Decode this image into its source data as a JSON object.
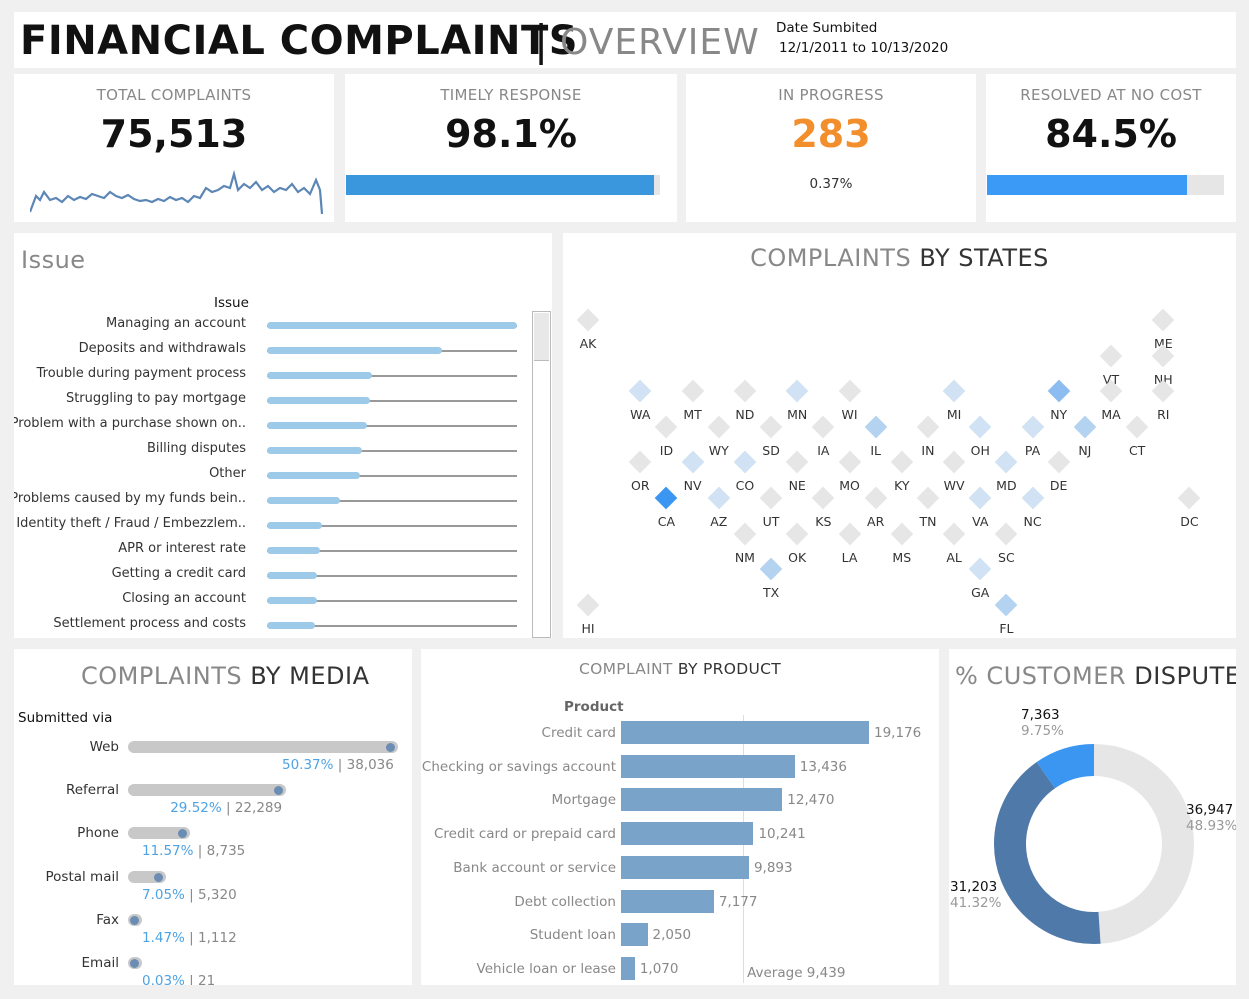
{
  "header": {
    "title_main": "FINANCIAL COMPLAINTS",
    "title_sep": "|",
    "title_sub": "OVERVIEW",
    "date_label": "Date Sumbited",
    "date_range": "12/1/2011 to 10/13/2020"
  },
  "kpis": {
    "total": {
      "label": "TOTAL COMPLAINTS",
      "value": "75,513"
    },
    "timely": {
      "label": "TIMELY RESPONSE",
      "value": "98.1%",
      "fraction": 0.981
    },
    "progress": {
      "label": "IN PROGRESS",
      "value": "283",
      "sub": "0.37%",
      "color": "#f28e2b"
    },
    "resolved": {
      "label": "RESOLVED AT NO COST",
      "value": "84.5%",
      "fraction": 0.845
    }
  },
  "issues": {
    "title": "Issue",
    "header": "Issue",
    "items": [
      {
        "label": "Managing an account",
        "fraction": 1.0
      },
      {
        "label": "Deposits and withdrawals",
        "fraction": 0.7
      },
      {
        "label": "Trouble during payment process",
        "fraction": 0.42
      },
      {
        "label": "Struggling to pay mortgage",
        "fraction": 0.41
      },
      {
        "label": "Problem with a purchase shown on..",
        "fraction": 0.4
      },
      {
        "label": "Billing disputes",
        "fraction": 0.38
      },
      {
        "label": "Other",
        "fraction": 0.37
      },
      {
        "label": "Problems caused by my funds bein..",
        "fraction": 0.29
      },
      {
        "label": "Identity theft / Fraud / Embezzlem..",
        "fraction": 0.22
      },
      {
        "label": "APR or interest rate",
        "fraction": 0.21
      },
      {
        "label": "Getting a credit card",
        "fraction": 0.2
      },
      {
        "label": "Closing an account",
        "fraction": 0.2
      },
      {
        "label": "Settlement process and costs",
        "fraction": 0.19
      }
    ]
  },
  "states": {
    "title_light": "COMPLAINTS",
    "title_dark": "BY STATES",
    "items": [
      {
        "abbr": "AK",
        "col": 0,
        "row": 0,
        "level": 0
      },
      {
        "abbr": "ME",
        "col": 11,
        "row": 0,
        "level": 0
      },
      {
        "abbr": "VT",
        "col": 10,
        "row": 1,
        "level": 0
      },
      {
        "abbr": "NH",
        "col": 11,
        "row": 1,
        "level": 0
      },
      {
        "abbr": "WA",
        "col": 1,
        "row": 2,
        "level": 1
      },
      {
        "abbr": "MT",
        "col": 2,
        "row": 2,
        "level": 0
      },
      {
        "abbr": "ND",
        "col": 3,
        "row": 2,
        "level": 0
      },
      {
        "abbr": "MN",
        "col": 4,
        "row": 2,
        "level": 1
      },
      {
        "abbr": "WI",
        "col": 5,
        "row": 2,
        "level": 0
      },
      {
        "abbr": "MI",
        "col": 7,
        "row": 2,
        "level": 1
      },
      {
        "abbr": "NY",
        "col": 9,
        "row": 2,
        "level": 3
      },
      {
        "abbr": "MA",
        "col": 10,
        "row": 2,
        "level": 0
      },
      {
        "abbr": "RI",
        "col": 11,
        "row": 2,
        "level": 0
      },
      {
        "abbr": "ID",
        "col": 1.5,
        "row": 3,
        "level": 0
      },
      {
        "abbr": "WY",
        "col": 2.5,
        "row": 3,
        "level": 0
      },
      {
        "abbr": "SD",
        "col": 3.5,
        "row": 3,
        "level": 0
      },
      {
        "abbr": "IA",
        "col": 4.5,
        "row": 3,
        "level": 0
      },
      {
        "abbr": "IL",
        "col": 5.5,
        "row": 3,
        "level": 2
      },
      {
        "abbr": "IN",
        "col": 6.5,
        "row": 3,
        "level": 0
      },
      {
        "abbr": "OH",
        "col": 7.5,
        "row": 3,
        "level": 1
      },
      {
        "abbr": "PA",
        "col": 8.5,
        "row": 3,
        "level": 1
      },
      {
        "abbr": "NJ",
        "col": 9.5,
        "row": 3,
        "level": 2
      },
      {
        "abbr": "CT",
        "col": 10.5,
        "row": 3,
        "level": 0
      },
      {
        "abbr": "OR",
        "col": 1,
        "row": 4,
        "level": 0
      },
      {
        "abbr": "NV",
        "col": 2,
        "row": 4,
        "level": 1
      },
      {
        "abbr": "CO",
        "col": 3,
        "row": 4,
        "level": 1
      },
      {
        "abbr": "NE",
        "col": 4,
        "row": 4,
        "level": 0
      },
      {
        "abbr": "MO",
        "col": 5,
        "row": 4,
        "level": 0
      },
      {
        "abbr": "KY",
        "col": 6,
        "row": 4,
        "level": 0
      },
      {
        "abbr": "WV",
        "col": 7,
        "row": 4,
        "level": 0
      },
      {
        "abbr": "MD",
        "col": 8,
        "row": 4,
        "level": 1
      },
      {
        "abbr": "DE",
        "col": 9,
        "row": 4,
        "level": 0
      },
      {
        "abbr": "CA",
        "col": 1.5,
        "row": 5,
        "level": 4
      },
      {
        "abbr": "AZ",
        "col": 2.5,
        "row": 5,
        "level": 1
      },
      {
        "abbr": "UT",
        "col": 3.5,
        "row": 5,
        "level": 0
      },
      {
        "abbr": "KS",
        "col": 4.5,
        "row": 5,
        "level": 0
      },
      {
        "abbr": "AR",
        "col": 5.5,
        "row": 5,
        "level": 0
      },
      {
        "abbr": "TN",
        "col": 6.5,
        "row": 5,
        "level": 0
      },
      {
        "abbr": "VA",
        "col": 7.5,
        "row": 5,
        "level": 1
      },
      {
        "abbr": "NC",
        "col": 8.5,
        "row": 5,
        "level": 1
      },
      {
        "abbr": "DC",
        "col": 11.5,
        "row": 5,
        "level": 0
      },
      {
        "abbr": "NM",
        "col": 3,
        "row": 6,
        "level": 0
      },
      {
        "abbr": "OK",
        "col": 4,
        "row": 6,
        "level": 0
      },
      {
        "abbr": "LA",
        "col": 5,
        "row": 6,
        "level": 0
      },
      {
        "abbr": "MS",
        "col": 6,
        "row": 6,
        "level": 0
      },
      {
        "abbr": "AL",
        "col": 7,
        "row": 6,
        "level": 0
      },
      {
        "abbr": "SC",
        "col": 8,
        "row": 6,
        "level": 0
      },
      {
        "abbr": "TX",
        "col": 3.5,
        "row": 7,
        "level": 2
      },
      {
        "abbr": "GA",
        "col": 7.5,
        "row": 7,
        "level": 1
      },
      {
        "abbr": "HI",
        "col": 0,
        "row": 8,
        "level": 0
      },
      {
        "abbr": "FL",
        "col": 8,
        "row": 8,
        "level": 2
      }
    ],
    "colors": [
      "#e6e6e6",
      "#d0e2f3",
      "#b3d3f1",
      "#8cbcf0",
      "#3a96f0"
    ]
  },
  "media": {
    "title_light": "COMPLAINTS",
    "title_dark": "BY MEDIA",
    "header": "Submitted via",
    "items": [
      {
        "label": "Web",
        "pct": "50.37%",
        "count": "38,036",
        "fraction": 1.0
      },
      {
        "label": "Referral",
        "pct": "29.52%",
        "count": "22,289",
        "fraction": 0.586
      },
      {
        "label": "Phone",
        "pct": "11.57%",
        "count": "8,735",
        "fraction": 0.23
      },
      {
        "label": "Postal mail",
        "pct": "7.05%",
        "count": "5,320",
        "fraction": 0.14
      },
      {
        "label": "Fax",
        "pct": "1.47%",
        "count": "1,112",
        "fraction": 0.03
      },
      {
        "label": "Email",
        "pct": "0.03%",
        "count": "21",
        "fraction": 0.0
      }
    ]
  },
  "product": {
    "title_light": "COMPLAINT",
    "title_dark": "BY PRODUCT",
    "header": "Product",
    "average_label": "Average 9,439",
    "average": 9439,
    "max": 19176,
    "items": [
      {
        "label": "Credit card",
        "value": 19176,
        "display": "19,176"
      },
      {
        "label": "Checking or savings account",
        "value": 13436,
        "display": "13,436"
      },
      {
        "label": "Mortgage",
        "value": 12470,
        "display": "12,470"
      },
      {
        "label": "Credit card or prepaid card",
        "value": 10241,
        "display": "10,241"
      },
      {
        "label": "Bank account or service",
        "value": 9893,
        "display": "9,893"
      },
      {
        "label": "Debt collection",
        "value": 7177,
        "display": "7,177"
      },
      {
        "label": "Student loan",
        "value": 2050,
        "display": "2,050"
      },
      {
        "label": "Vehicle loan or lease",
        "value": 1070,
        "display": "1,070"
      }
    ]
  },
  "disputed": {
    "title_light": "% CUSTOMER",
    "title_dark": "DISPUTED",
    "segments": [
      {
        "count": "36,947",
        "pct": "48.93%",
        "fraction": 0.4893,
        "color": "#e6e6e6"
      },
      {
        "count": "31,203",
        "pct": "41.32%",
        "fraction": 0.4132,
        "color": "#4f79a8"
      },
      {
        "count": "7,363",
        "pct": "9.75%",
        "fraction": 0.0975,
        "color": "#3a96f0"
      }
    ]
  }
}
